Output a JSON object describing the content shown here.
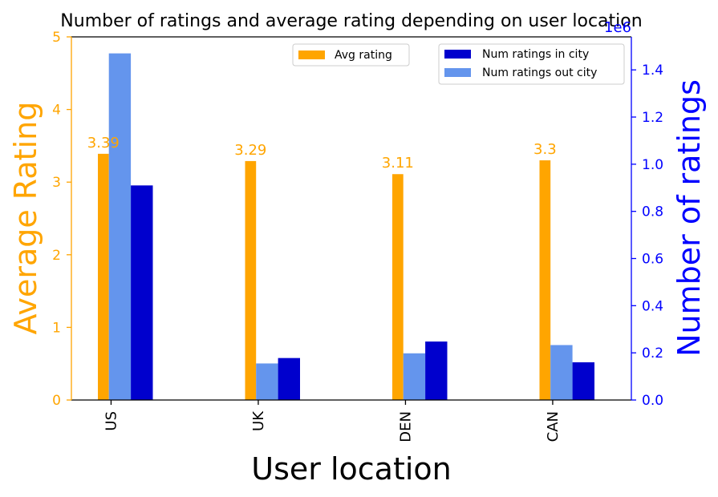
{
  "chart_data": {
    "type": "bar",
    "title": "Number of ratings and average rating depending on user location",
    "xlabel": "User location",
    "ylabel_left": "Average Rating",
    "ylabel_right": "Number of ratings",
    "right_axis_multiplier": "1e6",
    "categories": [
      "US",
      "UK",
      "DEN",
      "CAN"
    ],
    "ylim_left": [
      0,
      5
    ],
    "ylim_right": [
      0,
      1.54
    ],
    "yticks_left": [
      "0",
      "1",
      "2",
      "3",
      "4",
      "5"
    ],
    "yticks_right": [
      "0.0",
      "0.2",
      "0.4",
      "0.6",
      "0.8",
      "1.0",
      "1.2",
      "1.4"
    ],
    "series": [
      {
        "name": "Avg rating",
        "axis": "left",
        "color": "#ffa500",
        "values": [
          3.39,
          3.29,
          3.11,
          3.3
        ],
        "labels": [
          "3.39",
          "3.29",
          "3.11",
          "3.3"
        ]
      },
      {
        "name": "Num ratings out city",
        "axis": "right",
        "color": "#6495ed",
        "values": [
          1.47,
          0.155,
          0.198,
          0.233
        ]
      },
      {
        "name": "Num ratings in city",
        "axis": "right",
        "color": "#0000cd",
        "values": [
          0.91,
          0.178,
          0.248,
          0.16
        ]
      }
    ],
    "legends": [
      {
        "placement": "top-center",
        "entries": [
          "Avg rating"
        ]
      },
      {
        "placement": "top-right",
        "entries": [
          "Num ratings in city",
          "Num ratings out city"
        ]
      }
    ],
    "colors": {
      "left_axis": "#ffa500",
      "right_axis": "#0000ff"
    },
    "grid": false
  }
}
